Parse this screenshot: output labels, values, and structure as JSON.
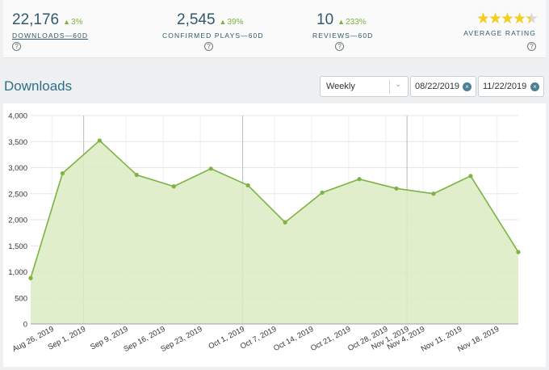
{
  "stats": {
    "downloads": {
      "value": "22,176",
      "delta": "3%",
      "label": "DOWNLOADS—60D",
      "help": "?"
    },
    "plays": {
      "value": "2,545",
      "delta": "39%",
      "label": "CONFIRMED PLAYS—60D",
      "help": "?"
    },
    "reviews": {
      "value": "10",
      "delta": "233%",
      "label": "REVIEWS—60D",
      "help": "?"
    },
    "rating": {
      "value": 4.5,
      "max": 5,
      "label": "AVERAGE RATING",
      "help": "?"
    },
    "delta_arrow": "▲"
  },
  "colors": {
    "accent": "#7cb342",
    "star": "#f2cf1f",
    "text": "#2f5a6b",
    "area": "#dcebc2"
  },
  "section": {
    "title": "Downloads"
  },
  "controls": {
    "interval": "Weekly",
    "start_date": "08/22/2019",
    "end_date": "11/22/2019",
    "clear_icon": "×",
    "chevron_icon": "⌄"
  },
  "chart_data": {
    "type": "area",
    "title": "",
    "xlabel": "",
    "ylabel": "",
    "ylim": [
      0,
      4000
    ],
    "yticks": [
      "0",
      "500",
      "1,000",
      "1,500",
      "2,000",
      "2,500",
      "3,000",
      "3,500",
      "4,000"
    ],
    "ytick_values": [
      0,
      500,
      1000,
      1500,
      2000,
      2500,
      3000,
      3500,
      4000
    ],
    "grid": true,
    "xrange": [
      "2019-08-22",
      "2019-11-22"
    ],
    "xticks": [
      {
        "date": "2019-08-26",
        "label": "Aug 26, 2019"
      },
      {
        "date": "2019-09-01",
        "label": "Sep 1, 2019"
      },
      {
        "date": "2019-09-09",
        "label": "Sep 9, 2019"
      },
      {
        "date": "2019-09-16",
        "label": "Sep 16, 2019"
      },
      {
        "date": "2019-09-23",
        "label": "Sep 23, 2019"
      },
      {
        "date": "2019-10-01",
        "label": "Oct 1, 2019"
      },
      {
        "date": "2019-10-07",
        "label": "Oct 7, 2019"
      },
      {
        "date": "2019-10-14",
        "label": "Oct 14, 2019"
      },
      {
        "date": "2019-10-21",
        "label": "Oct 21, 2019"
      },
      {
        "date": "2019-10-28",
        "label": "Oct 28, 2019"
      },
      {
        "date": "2019-11-01",
        "label": "Nov 1, 2019"
      },
      {
        "date": "2019-11-04",
        "label": "Nov 4, 2019"
      },
      {
        "date": "2019-11-11",
        "label": "Nov 11, 2019"
      },
      {
        "date": "2019-11-18",
        "label": "Nov 18, 2019"
      }
    ],
    "month_lines": [
      "2019-09-01",
      "2019-10-01",
      "2019-11-01"
    ],
    "series": [
      {
        "x": [
          "2019-08-22",
          "2019-08-28",
          "2019-09-04",
          "2019-09-11",
          "2019-09-18",
          "2019-09-25",
          "2019-10-02",
          "2019-10-09",
          "2019-10-16",
          "2019-10-23",
          "2019-10-30",
          "2019-11-06",
          "2019-11-13",
          "2019-11-22"
        ],
        "y": [
          880,
          2890,
          3520,
          2860,
          2640,
          2980,
          2660,
          1950,
          2520,
          2780,
          2600,
          2500,
          2840,
          1380
        ]
      }
    ]
  }
}
